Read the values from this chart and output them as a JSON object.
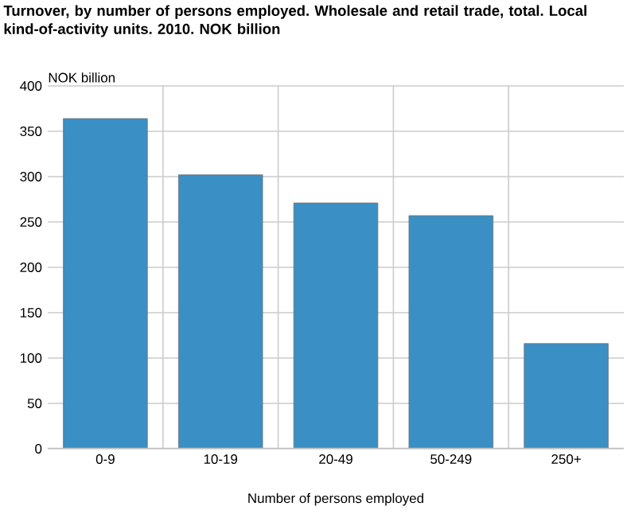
{
  "chart_data": {
    "type": "bar",
    "title": "Turnover, by number of persons employed. Wholesale and retail trade, total. Local kind-of-activity units. 2010. NOK billion",
    "xlabel": "Number of persons employed",
    "ylabel": "NOK billion",
    "categories": [
      "0-9",
      "10-19",
      "20-49",
      "50-249",
      "250+"
    ],
    "values": [
      364,
      302,
      271,
      257,
      116
    ],
    "color": "#3a8fc4",
    "ylim": [
      0,
      400
    ],
    "yticks": [
      0,
      50,
      100,
      150,
      200,
      250,
      300,
      350,
      400
    ],
    "grid": true
  }
}
